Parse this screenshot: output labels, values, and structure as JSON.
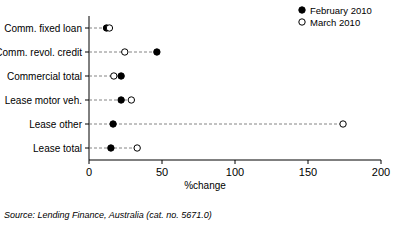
{
  "chart_data": {
    "type": "dot",
    "orientation": "horizontal",
    "categories": [
      "Comm. fixed loan",
      "Comm. revol. credit",
      "Commercial total",
      "Lease motor veh.",
      "Lease other",
      "Lease total"
    ],
    "series": [
      {
        "name": "February 2010",
        "color": "#000000",
        "marker": "filled-circle",
        "values": [
          12,
          46.5,
          22,
          22,
          16.5,
          15
        ]
      },
      {
        "name": "March 2010",
        "color": "#000000",
        "marker": "open-circle",
        "values": [
          14,
          24.5,
          17,
          29,
          174,
          33
        ]
      }
    ],
    "xlim": [
      0,
      200
    ],
    "xticks": [
      0,
      50,
      100,
      150,
      200
    ],
    "x_label": "%change",
    "legend": "top-right",
    "grid": false,
    "source": "Source: Lending Finance, Australia (cat. no. 5671.0)"
  }
}
